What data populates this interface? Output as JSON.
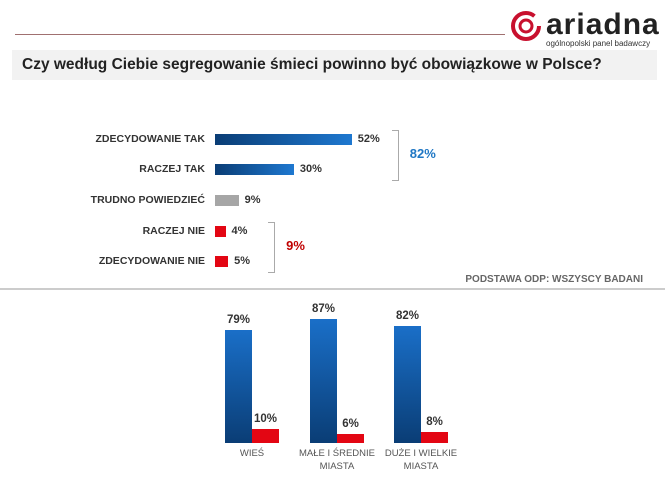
{
  "header": {
    "logo_text": "ariadna",
    "logo_subtitle": "ogólnopolski panel badawczy",
    "brand_color": "#c8102e"
  },
  "title": "Czy według Ciebie segregowanie śmieci powinno być obowiązkowe w Polsce?",
  "basis": "PODSTAWA ODP: WSZYSCY BADANI",
  "chart_data": [
    {
      "type": "bar",
      "orientation": "horizontal",
      "categories": [
        "ZDECYDOWANIE TAK",
        "RACZEJ TAK",
        "TRUDNO POWIEDZIEĆ",
        "RACZEJ NIE",
        "ZDECYDOWANIE NIE"
      ],
      "values": [
        52,
        30,
        9,
        4,
        5
      ],
      "value_labels": [
        "52%",
        "30%",
        "9%",
        "4%",
        "5%"
      ],
      "colors": [
        "blue",
        "blue",
        "gray",
        "red",
        "red"
      ],
      "annotations": [
        {
          "text": "82%",
          "color": "#1f77c4",
          "groups": [
            0,
            1
          ]
        },
        {
          "text": "9%",
          "color": "#c00000",
          "groups": [
            3,
            4
          ]
        }
      ]
    },
    {
      "type": "bar",
      "orientation": "vertical",
      "categories": [
        "WIEŚ",
        "MAŁE I ŚREDNIE MIASTA",
        "DUŻE I WIELKIE MIASTA"
      ],
      "category_lines": [
        [
          "WIEŚ"
        ],
        [
          "MAŁE I ŚREDNIE",
          "MIASTA"
        ],
        [
          "DUŻE  I WIELKIE",
          "MIASTA"
        ]
      ],
      "series": [
        {
          "values": [
            79,
            87,
            82
          ],
          "labels": [
            "79%",
            "87%",
            "82%"
          ],
          "color": "#1a6fc8"
        },
        {
          "values": [
            10,
            6,
            8
          ],
          "labels": [
            "10%",
            "6%",
            "8%"
          ],
          "color": "#e30613"
        }
      ]
    }
  ]
}
